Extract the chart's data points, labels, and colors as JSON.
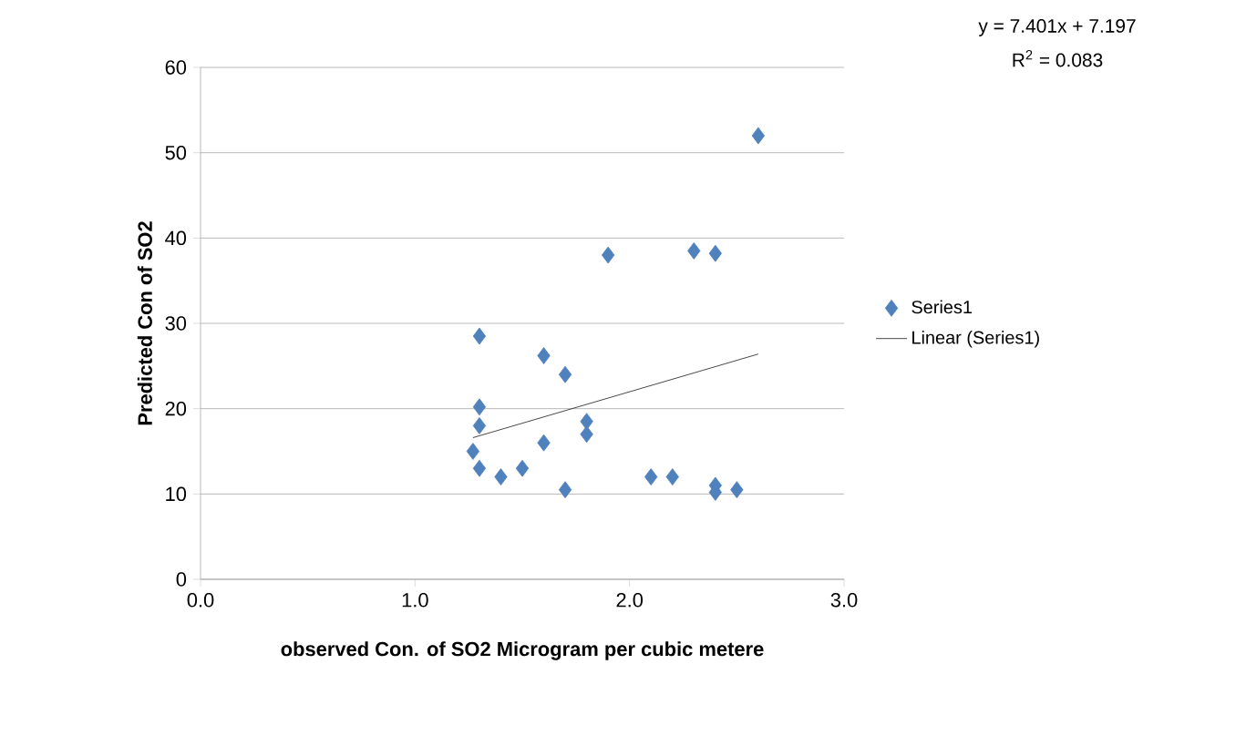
{
  "chart_data": {
    "type": "scatter",
    "xlabel": "observed Con. of SO2 Microgram per cubic metere",
    "ylabel": "Predicted Con of SO2",
    "annotations": [
      "y = 7.401x + 7.197",
      "R$^{2}$ = 0.083"
    ],
    "series": [
      {
        "name": "Series1",
        "color": "#4f81bd",
        "marker": "diamond",
        "x": [
          1.3,
          1.3,
          1.3,
          1.27,
          1.3,
          1.4,
          1.5,
          1.6,
          1.6,
          1.7,
          1.7,
          1.8,
          1.8,
          1.9,
          2.1,
          2.2,
          2.3,
          2.4,
          2.4,
          2.4,
          2.5,
          2.6
        ],
        "values": [
          28.5,
          20.2,
          18,
          15,
          13,
          12,
          13,
          16,
          26.2,
          24,
          10.5,
          18.5,
          17,
          38,
          12,
          12,
          38.5,
          38.2,
          11,
          10.2,
          10.5,
          52
        ]
      },
      {
        "name": "Linear (Series1)",
        "type": "line",
        "color": "#1a1a1a",
        "marker": "none",
        "line_style": "solid",
        "x": [
          1.27,
          2.6
        ],
        "values": [
          16.6,
          26.4
        ]
      }
    ],
    "xlim": [
      0,
      3
    ],
    "xticks": [
      {
        "value": 0,
        "label": "0.0"
      },
      {
        "value": 1,
        "label": "1.0"
      },
      {
        "value": 2,
        "label": "2.0"
      },
      {
        "value": 3,
        "label": "3.0"
      }
    ],
    "ylim": [
      0,
      60
    ],
    "yticks": [
      0,
      10,
      20,
      30,
      40,
      50,
      60
    ],
    "grid": "y",
    "legend": "right"
  }
}
